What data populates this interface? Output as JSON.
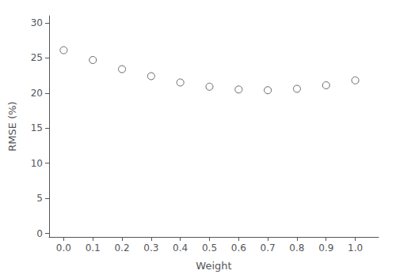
{
  "chart_data": {
    "type": "scatter",
    "x": [
      0.0,
      0.1,
      0.2,
      0.3,
      0.4,
      0.5,
      0.6,
      0.7,
      0.8,
      0.9,
      1.0
    ],
    "values": [
      26.1,
      24.7,
      23.4,
      22.4,
      21.5,
      20.9,
      20.5,
      20.4,
      20.6,
      21.1,
      21.8
    ],
    "xlabel": "Weight",
    "ylabel": "RMSE (%)",
    "xlim": [
      -0.05,
      1.08
    ],
    "ylim": [
      -0.5,
      31
    ],
    "xticks": [
      {
        "value": 0.0,
        "label": "0.0"
      },
      0.1,
      0.2,
      0.3,
      0.4,
      0.5,
      0.6,
      0.7,
      0.8,
      0.9,
      {
        "value": 1.0,
        "label": "1.0"
      }
    ],
    "yticks": [
      0,
      5,
      10,
      15,
      20,
      25,
      30
    ],
    "color": "#444444",
    "marker": "circle",
    "grid": false
  }
}
